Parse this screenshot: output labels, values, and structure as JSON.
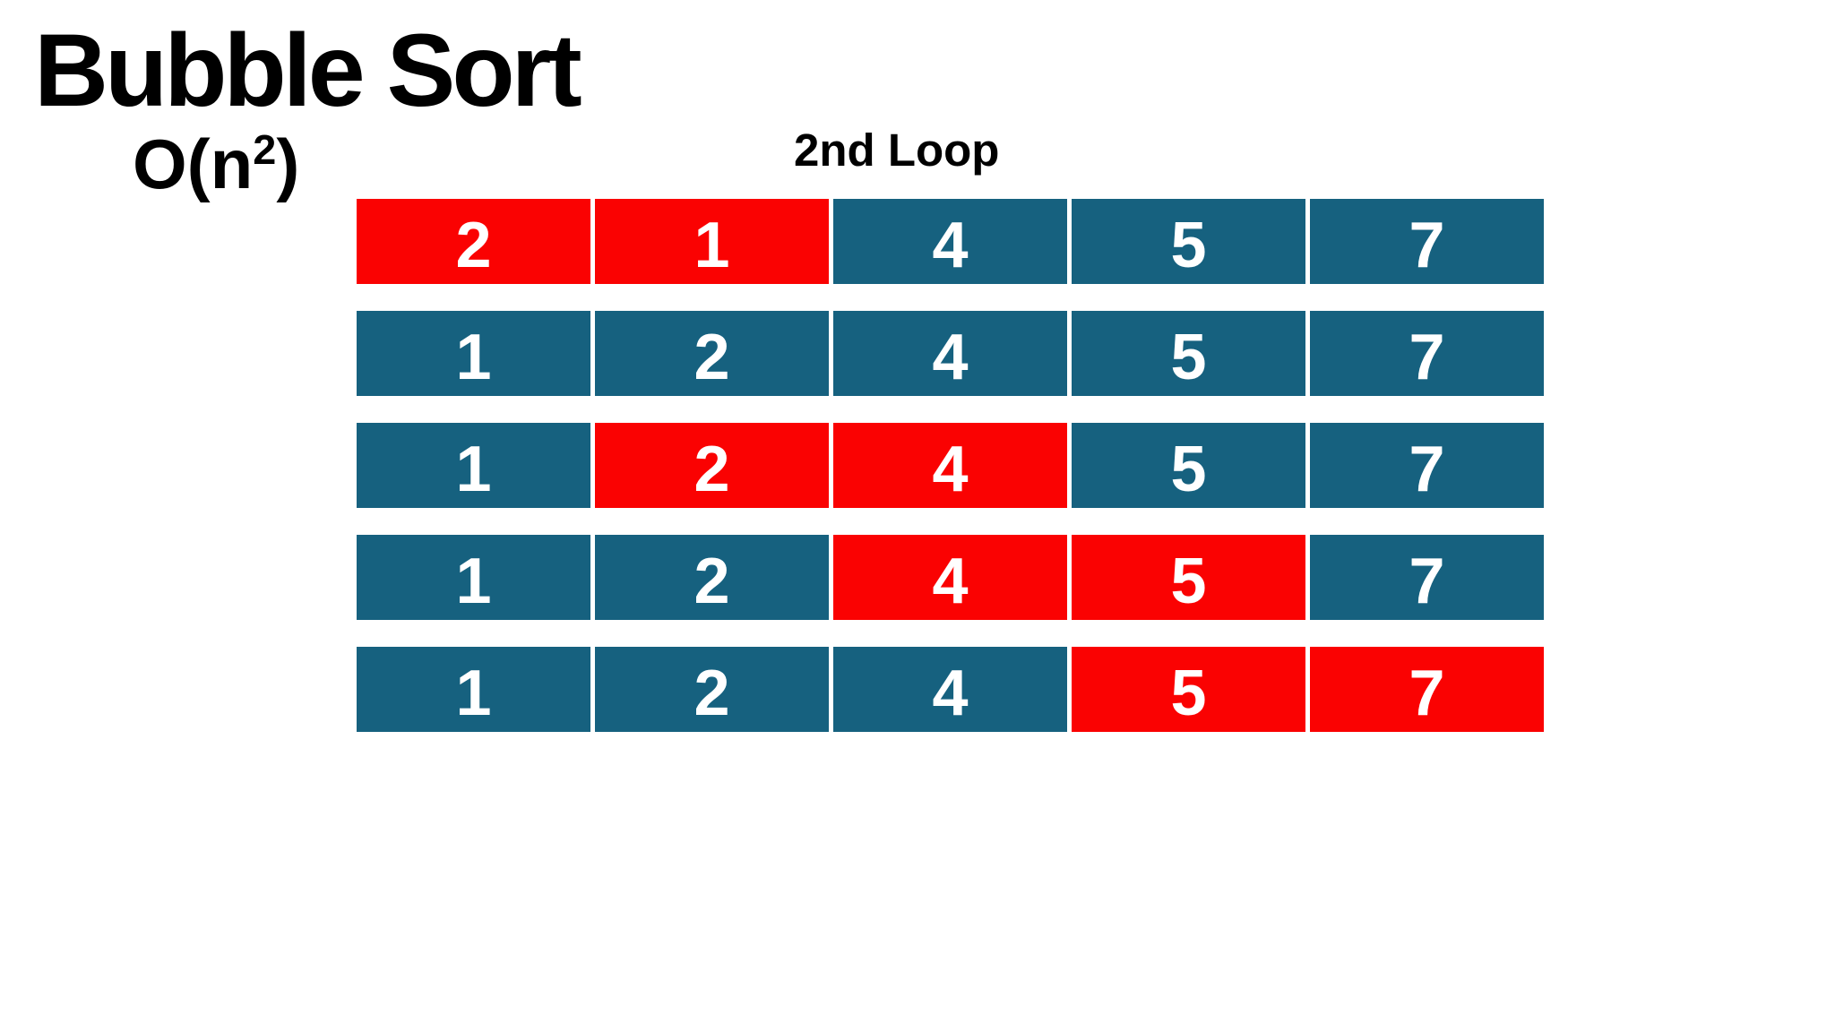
{
  "title": "Bubble Sort",
  "complexity": {
    "base": "O(n",
    "exponent": "2",
    "close": ")"
  },
  "loop_label": "2nd Loop",
  "colors": {
    "highlight": "#FA0202",
    "base": "#16617F",
    "cell_text": "#FFFFFF",
    "heading_text": "#000000",
    "background": "#FFFFFF"
  },
  "grid": {
    "columns": 5,
    "rows": [
      {
        "cells": [
          {
            "value": "2",
            "state": "highlight"
          },
          {
            "value": "1",
            "state": "highlight"
          },
          {
            "value": "4",
            "state": "base"
          },
          {
            "value": "5",
            "state": "base"
          },
          {
            "value": "7",
            "state": "base"
          }
        ]
      },
      {
        "cells": [
          {
            "value": "1",
            "state": "base"
          },
          {
            "value": "2",
            "state": "base"
          },
          {
            "value": "4",
            "state": "base"
          },
          {
            "value": "5",
            "state": "base"
          },
          {
            "value": "7",
            "state": "base"
          }
        ]
      },
      {
        "cells": [
          {
            "value": "1",
            "state": "base"
          },
          {
            "value": "2",
            "state": "highlight"
          },
          {
            "value": "4",
            "state": "highlight"
          },
          {
            "value": "5",
            "state": "base"
          },
          {
            "value": "7",
            "state": "base"
          }
        ]
      },
      {
        "cells": [
          {
            "value": "1",
            "state": "base"
          },
          {
            "value": "2",
            "state": "base"
          },
          {
            "value": "4",
            "state": "highlight"
          },
          {
            "value": "5",
            "state": "highlight"
          },
          {
            "value": "7",
            "state": "base"
          }
        ]
      },
      {
        "cells": [
          {
            "value": "1",
            "state": "base"
          },
          {
            "value": "2",
            "state": "base"
          },
          {
            "value": "4",
            "state": "base"
          },
          {
            "value": "5",
            "state": "highlight"
          },
          {
            "value": "7",
            "state": "highlight"
          }
        ]
      }
    ]
  }
}
